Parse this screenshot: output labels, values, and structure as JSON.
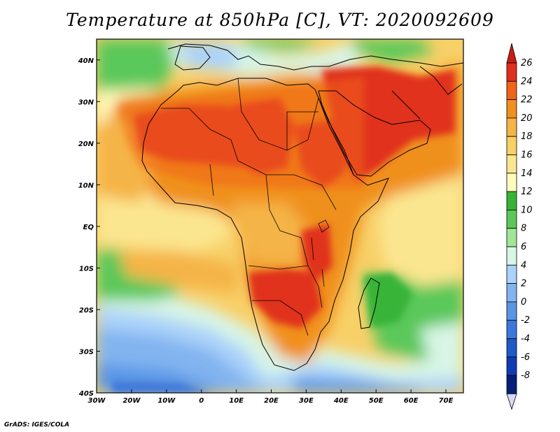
{
  "title": "Temperature at 850hPa [C], VT: 2020092609",
  "footer": "GrADS: IGES/COLA",
  "map": {
    "lon_range": [
      -30,
      75
    ],
    "lat_range": [
      -40,
      45
    ],
    "lon_ticks": [
      {
        "value": -30,
        "label": "30W"
      },
      {
        "value": -20,
        "label": "20W"
      },
      {
        "value": -10,
        "label": "10W"
      },
      {
        "value": 0,
        "label": "0"
      },
      {
        "value": 10,
        "label": "10E"
      },
      {
        "value": 20,
        "label": "20E"
      },
      {
        "value": 30,
        "label": "30E"
      },
      {
        "value": 40,
        "label": "40E"
      },
      {
        "value": 50,
        "label": "50E"
      },
      {
        "value": 60,
        "label": "60E"
      },
      {
        "value": 70,
        "label": "70E"
      }
    ],
    "lat_ticks": [
      {
        "value": 40,
        "label": "40N"
      },
      {
        "value": 30,
        "label": "30N"
      },
      {
        "value": 20,
        "label": "20N"
      },
      {
        "value": 10,
        "label": "10N"
      },
      {
        "value": 0,
        "label": "EQ"
      },
      {
        "value": -10,
        "label": "10S"
      },
      {
        "value": -20,
        "label": "20S"
      },
      {
        "value": -30,
        "label": "30S"
      },
      {
        "value": -40,
        "label": "40S"
      }
    ]
  },
  "colorbar": {
    "labels": [
      "26",
      "24",
      "22",
      "20",
      "18",
      "16",
      "14",
      "12",
      "10",
      "8",
      "6",
      "4",
      "2",
      "0",
      "-2",
      "-4",
      "-6",
      "-8"
    ],
    "colors": [
      "#e0301e",
      "#f06418",
      "#f0901e",
      "#f5b446",
      "#f8d068",
      "#fbe690",
      "#fffcbe",
      "#37b437",
      "#5ac85a",
      "#a0e696",
      "#d8f5e6",
      "#aad2fa",
      "#82b4f0",
      "#5a96e6",
      "#3c78dc",
      "#1e5ac8",
      "#0f3cb4",
      "#081e78"
    ],
    "top_arrow_color": "#c81e14",
    "bottom_arrow_color": "#d8d8f8"
  },
  "colors": {
    "ocean_warm": "#f5b446",
    "ocean_cool": "#fffcbe",
    "sahara_hot": "#e0301e"
  }
}
